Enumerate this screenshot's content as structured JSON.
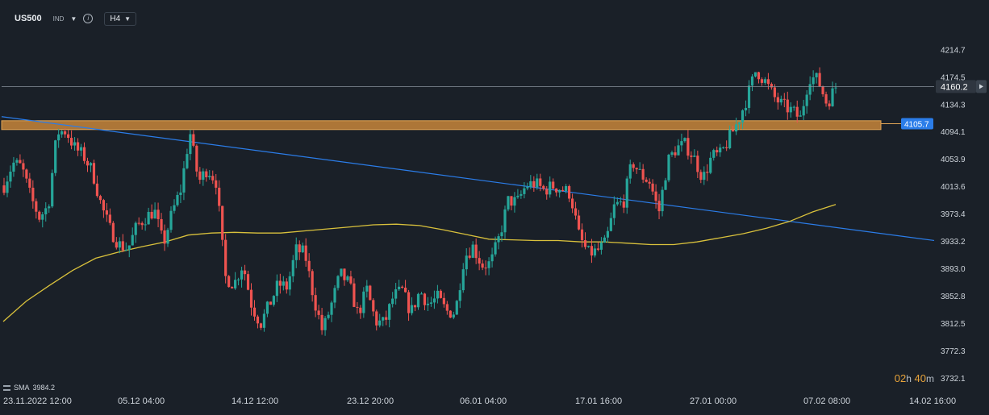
{
  "header": {
    "symbol": "US500",
    "indicator_label": "IND",
    "timeframe": "H4"
  },
  "legend": {
    "sma_label": "SMA",
    "sma_value": "3984.2"
  },
  "countdown": {
    "hours": "02",
    "hours_unit": "h",
    "minutes": "40",
    "minutes_unit": "m"
  },
  "colors": {
    "background": "#1a2028",
    "bull": "#26a69a",
    "bear": "#ef5350",
    "sma": "#d9c13c",
    "trendline": "#2b7de9",
    "zone_fill": "#c8863a",
    "price_label": "#2f3640",
    "zone_label": "#2b7de9"
  },
  "chart_data": {
    "type": "candlestick",
    "ylim": [
      3725,
      4240
    ],
    "y_ticks": [
      "4214.7",
      "4174.5",
      "4134.3",
      "4094.1",
      "4053.9",
      "4013.6",
      "3973.4",
      "3933.2",
      "3893.0",
      "3852.8",
      "3812.5",
      "3772.3",
      "3732.1"
    ],
    "x_ticks": [
      "23.11.2022  12:00",
      "05.12  04:00",
      "14.12  12:00",
      "23.12  20:00",
      "06.01  04:00",
      "17.01  16:00",
      "27.01  00:00",
      "07.02  08:00",
      "14.02  16:00"
    ],
    "current_price": 4160.2,
    "current_price_label": "4160.2",
    "resistance_zone": {
      "low": 4097,
      "high": 4110,
      "label": "4105.7"
    },
    "trendline": {
      "start_value": 4116,
      "end_value": 3934
    },
    "sma_period_label": "SMA",
    "sma_value_label": "3984.2",
    "close_path": [
      4015,
      4048,
      4042,
      3998,
      3968,
      3985,
      4093,
      4095,
      4070,
      4058,
      4035,
      3985,
      3950,
      3928,
      3922,
      3955,
      3968,
      3978,
      3928,
      3975,
      4010,
      4094,
      4020,
      4040,
      4020,
      3880,
      3870,
      3900,
      3838,
      3812,
      3840,
      3870,
      3865,
      3920,
      3915,
      3850,
      3800,
      3840,
      3885,
      3870,
      3825,
      3862,
      3815,
      3812,
      3852,
      3860,
      3828,
      3860,
      3840,
      3850,
      3830,
      3828,
      3910,
      3925,
      3898,
      3900,
      3940,
      3993,
      3990,
      4015,
      4018,
      4008,
      4014,
      4010,
      4003,
      3940,
      3915,
      3918,
      3930,
      3985,
      3990,
      4050,
      4030,
      4020,
      3975,
      4050,
      4070,
      4075,
      4055,
      4025,
      4058,
      4060,
      4085,
      4110,
      4145,
      4185,
      4168,
      4145,
      4132,
      4125,
      4113,
      4175,
      4170,
      4135,
      4160
    ],
    "sma_curve": [
      3815,
      3845,
      3868,
      3890,
      3908,
      3917,
      3925,
      3932,
      3942,
      3945,
      3946,
      3945,
      3945,
      3948,
      3951,
      3954,
      3957,
      3958,
      3956,
      3950,
      3943,
      3936,
      3935,
      3934,
      3934,
      3932,
      3932,
      3930,
      3928,
      3928,
      3932,
      3938,
      3944,
      3952,
      3962,
      3976,
      3987
    ]
  }
}
